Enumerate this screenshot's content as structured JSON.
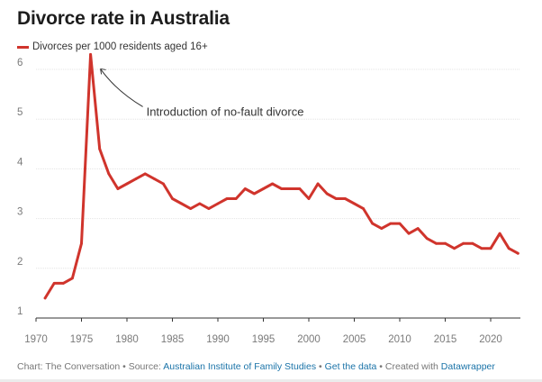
{
  "chart_data": {
    "type": "line",
    "title": "Divorce rate in Australia",
    "xlabel": "",
    "ylabel": "",
    "xlim": [
      1970,
      2023
    ],
    "ylim": [
      1,
      6.4
    ],
    "x_ticks": [
      1970,
      1975,
      1980,
      1985,
      1990,
      1995,
      2000,
      2005,
      2010,
      2015,
      2020
    ],
    "y_ticks": [
      1,
      2,
      3,
      4,
      5,
      6
    ],
    "grid": true,
    "series": [
      {
        "name": "Divorces per 1000 residents aged 16+",
        "color": "#d0342c",
        "x": [
          1971,
          1972,
          1973,
          1974,
          1975,
          1976,
          1977,
          1978,
          1979,
          1980,
          1981,
          1982,
          1983,
          1984,
          1985,
          1986,
          1987,
          1988,
          1989,
          1990,
          1991,
          1992,
          1993,
          1994,
          1995,
          1996,
          1997,
          1998,
          1999,
          2000,
          2001,
          2002,
          2003,
          2004,
          2005,
          2006,
          2007,
          2008,
          2009,
          2010,
          2011,
          2012,
          2013,
          2014,
          2015,
          2016,
          2017,
          2018,
          2019,
          2020,
          2021,
          2022,
          2023
        ],
        "values": [
          1.4,
          1.7,
          1.7,
          1.8,
          2.5,
          6.3,
          4.4,
          3.9,
          3.6,
          3.7,
          3.8,
          3.9,
          3.8,
          3.7,
          3.4,
          3.3,
          3.2,
          3.3,
          3.2,
          3.3,
          3.4,
          3.4,
          3.6,
          3.5,
          3.6,
          3.7,
          3.6,
          3.6,
          3.6,
          3.4,
          3.7,
          3.5,
          3.4,
          3.4,
          3.3,
          3.2,
          2.9,
          2.8,
          2.9,
          2.9,
          2.7,
          2.8,
          2.6,
          2.5,
          2.5,
          2.4,
          2.5,
          2.5,
          2.4,
          2.4,
          2.7,
          2.4,
          2.3
        ]
      }
    ],
    "annotations": [
      {
        "text": "Introduction of no-fault divorce",
        "x": 1976,
        "y": 6.3
      }
    ]
  },
  "footer": {
    "chart_credit": "Chart: The Conversation",
    "separator": " • ",
    "source_prefix": "Source: ",
    "source_link": "Australian Institute of Family Studies",
    "get_data": "Get the data",
    "created_prefix": "Created with ",
    "created_link": "Datawrapper"
  }
}
